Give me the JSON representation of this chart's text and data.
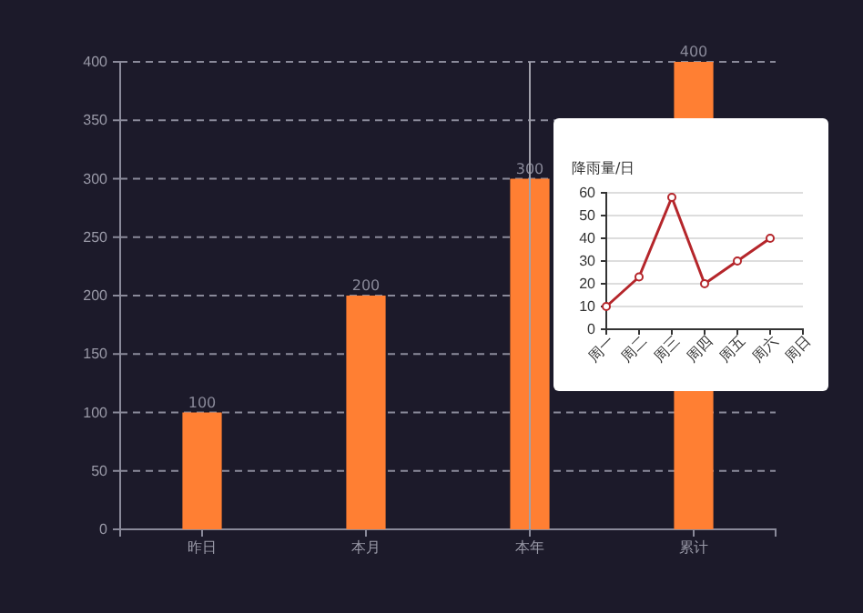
{
  "chart_data": [
    {
      "type": "bar",
      "categories": [
        "昨日",
        "本月",
        "本年",
        "累计"
      ],
      "values": [
        100,
        200,
        300,
        400
      ],
      "color": "#ff7f33",
      "ylim": [
        0,
        400
      ],
      "yticks": [
        0,
        50,
        100,
        150,
        200,
        250,
        300,
        350,
        400
      ],
      "grid": "y",
      "data_labels": true,
      "ref_lines": [
        {
          "axis": "x",
          "value": "本年",
          "color": "#a0a0aa"
        }
      ]
    },
    {
      "type": "line",
      "title": "降雨量/日",
      "categories": [
        "周一",
        "周二",
        "周三",
        "周四",
        "周五",
        "周六",
        "周日"
      ],
      "values": [
        10,
        23,
        58,
        20,
        30,
        40,
        null
      ],
      "color": "#b5262b",
      "ylim": [
        0,
        60
      ],
      "yticks": [
        0,
        10,
        20,
        30,
        40,
        50,
        60
      ],
      "grid": "y",
      "marker": "circle",
      "line_style": "solid"
    }
  ]
}
